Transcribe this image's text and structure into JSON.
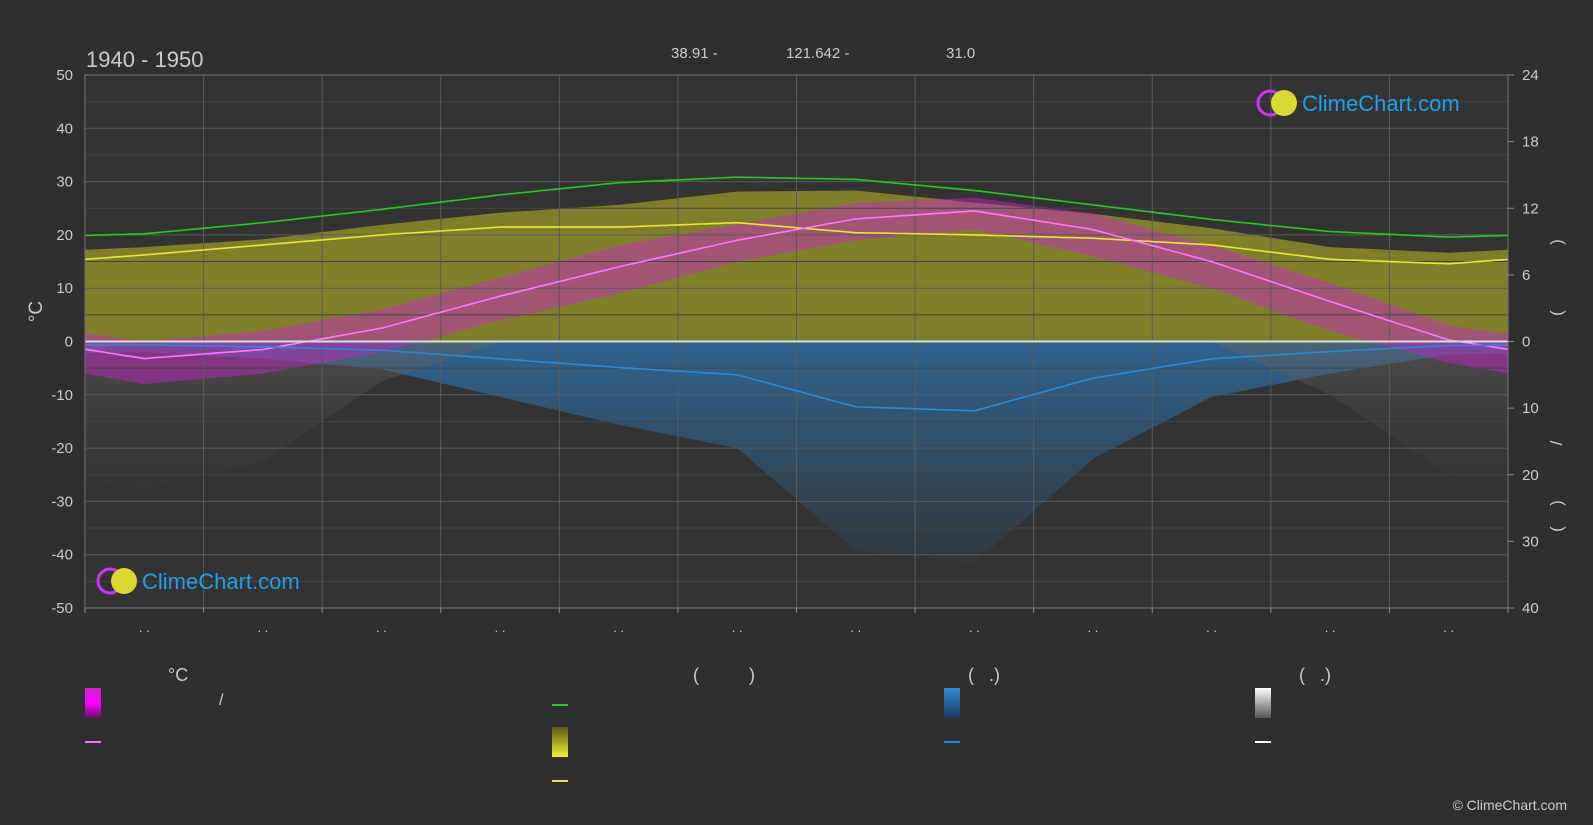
{
  "header": {
    "period": "1940 - 1950",
    "lat": "38.91 -",
    "lon": "121.642 -",
    "elevation": "31.0"
  },
  "logo_text": "ClimeChart.com",
  "copyright": "© ClimeChart.com",
  "colors": {
    "background": "#2f2f2f",
    "daylight": "#22cc22",
    "sunshine": "#e8e830",
    "sunshine_band": "#9a9a28",
    "temp_band": "#cc22cc",
    "temp_mean": "#ff77ff",
    "precip": "#2a8ad8",
    "snow": "#dddddd",
    "grid": "#555555",
    "text": "#cccccc",
    "logo": "#1fa0e8"
  },
  "legend": {
    "temperature": {
      "header": "°C",
      "range_label": "/"
    },
    "sunshine": {
      "header": "(          )"
    },
    "precipitation": {
      "header": "(   .)"
    },
    "snow": {
      "header": "(   .)"
    }
  },
  "chart_data": {
    "type": "line",
    "title": "1940 - 1950",
    "ylabel_left": "°C",
    "ylim_left": [
      -50,
      50
    ],
    "yticks_left": [
      "50",
      "40",
      "30",
      "20",
      "10",
      "0",
      "-10",
      "-20",
      "-30",
      "-40",
      "-50"
    ],
    "yticks_right_top": [
      "24",
      "18",
      "12",
      "6",
      "0"
    ],
    "yticks_right_bottom": [
      "10",
      "20",
      "30",
      "40"
    ],
    "right_axis_label_fragments": [
      ")",
      "(",
      "/",
      ")",
      "("
    ],
    "month_labels": [
      ". .",
      ". .",
      ". .",
      ". .",
      ". .",
      ". .",
      ". .",
      ". .",
      ". .",
      ". .",
      ". .",
      ". ."
    ],
    "x_months": [
      0.5,
      1.5,
      2.5,
      3.5,
      4.5,
      5.5,
      6.5,
      7.5,
      8.5,
      9.5,
      10.5,
      11.5
    ],
    "series": [
      {
        "key": "daylight",
        "unit": "h",
        "values": [
          9.7,
          10.7,
          11.9,
          13.2,
          14.3,
          14.8,
          14.6,
          13.6,
          12.3,
          11.0,
          9.9,
          9.4
        ]
      },
      {
        "key": "sunshine",
        "unit": "h",
        "values": [
          7.8,
          8.7,
          9.6,
          10.3,
          10.3,
          10.7,
          9.8,
          9.6,
          9.3,
          8.7,
          7.4,
          7.0
        ]
      },
      {
        "key": "temp_mean",
        "unit": "°C",
        "values": [
          -3.2,
          -1.5,
          2.5,
          8.5,
          14.0,
          19.0,
          23.0,
          24.5,
          21.0,
          15.0,
          7.5,
          0.3
        ]
      },
      {
        "key": "precip",
        "unit": "mm",
        "values": [
          0.5,
          0.8,
          1.3,
          2.6,
          3.9,
          5.0,
          9.8,
          10.4,
          5.5,
          2.6,
          1.5,
          0.6
        ]
      }
    ],
    "temp_band_min": [
      -8,
      -6,
      -2,
      4,
      9,
      15,
      19,
      21,
      16,
      10,
      2,
      -4
    ],
    "temp_band_max": [
      0,
      2,
      6,
      12,
      18,
      22,
      26,
      27,
      24,
      18,
      11,
      3
    ],
    "sunshine_band_top_hours": [
      8.5,
      9.2,
      10.5,
      11.6,
      12.3,
      13.5,
      13.6,
      12.5,
      11.5,
      10.2,
      8.5,
      8.0
    ],
    "grid": true
  }
}
